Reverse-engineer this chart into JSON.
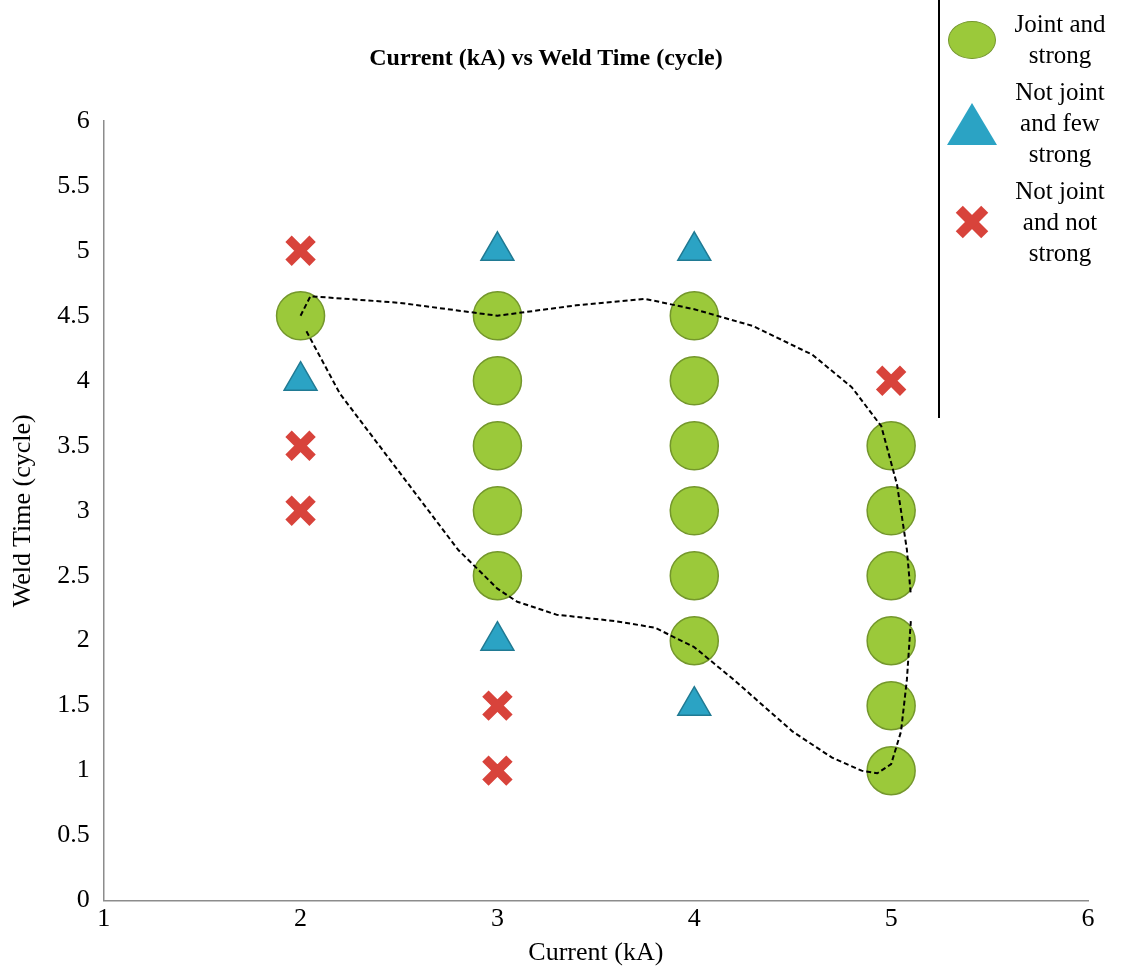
{
  "chart_data": {
    "type": "scatter",
    "title": "Current (kA) vs Weld Time (cycle)",
    "xlabel": "Current (kA)",
    "ylabel": "Weld Time (cycle)",
    "xlim": [
      1,
      6
    ],
    "xticks": [
      1,
      2,
      3,
      4,
      5,
      6
    ],
    "ylim": [
      0,
      6
    ],
    "yticks": [
      0,
      0.5,
      1,
      1.5,
      2,
      2.5,
      3,
      3.5,
      4,
      4.5,
      5,
      5.5,
      6
    ],
    "grid": false,
    "legend": "right",
    "series": [
      {
        "name": "Joint and strong",
        "marker": "circle",
        "color": "#9bc93a",
        "x": [
          2,
          3,
          3,
          3,
          3,
          3,
          4,
          4,
          4,
          4,
          4,
          4,
          5,
          5,
          5,
          5,
          5,
          5
        ],
        "values": [
          4.5,
          4.5,
          4,
          3.5,
          3,
          2.5,
          4.5,
          4,
          3.5,
          3,
          2.5,
          2,
          3.5,
          3,
          2.5,
          2,
          1.5,
          1
        ]
      },
      {
        "name": "Not joint and few strong",
        "marker": "triangle",
        "color": "#2ba3c4",
        "x": [
          2,
          3,
          3,
          4,
          4
        ],
        "values": [
          4,
          5,
          2,
          5,
          1.5
        ]
      },
      {
        "name": "Not joint and not strong",
        "marker": "cross",
        "color": "#d8433b",
        "x": [
          2,
          2,
          2,
          3,
          3,
          5
        ],
        "values": [
          5,
          3.5,
          3,
          1.5,
          1,
          4
        ]
      },
      {
        "type": "line",
        "marker": "none",
        "line_style": "dashed",
        "color": "#000000",
        "x": [
          2,
          2.05,
          2.5,
          3,
          3.4,
          3.75,
          4,
          4.3,
          4.6,
          4.8,
          4.95,
          5.03,
          5.08,
          5.1
        ],
        "values": [
          4.5,
          4.65,
          4.6,
          4.5,
          4.58,
          4.63,
          4.55,
          4.42,
          4.2,
          3.95,
          3.65,
          3.2,
          2.7,
          2.35
        ]
      },
      {
        "type": "line",
        "marker": "none",
        "line_style": "dashed",
        "color": "#000000",
        "x": [
          2.03,
          2.2,
          2.5,
          2.8,
          3,
          3.1,
          3.3,
          3.6,
          3.8,
          4,
          4.2,
          4.5,
          4.7,
          4.85,
          4.93,
          5,
          5.05,
          5.08,
          5.1
        ],
        "values": [
          4.38,
          3.9,
          3.3,
          2.7,
          2.4,
          2.3,
          2.2,
          2.15,
          2.1,
          1.95,
          1.7,
          1.3,
          1.1,
          1,
          0.98,
          1.05,
          1.3,
          1.7,
          2.15
        ]
      }
    ]
  }
}
